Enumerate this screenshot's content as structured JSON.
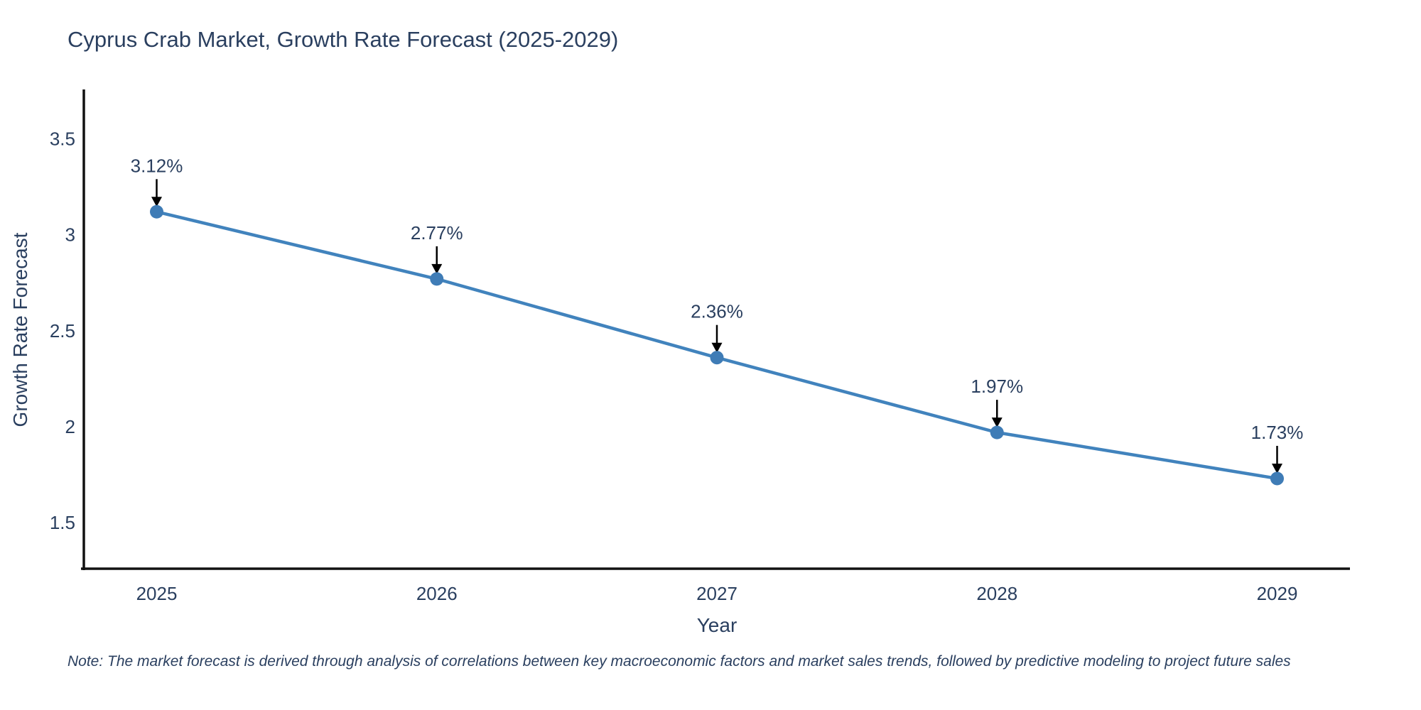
{
  "page": {
    "background_color": "#ffffff",
    "text_color": "#2a3f5f"
  },
  "chart_data": {
    "type": "line",
    "title": "Cyprus Crab Market, Growth Rate Forecast (2025-2029)",
    "xlabel": "Year",
    "ylabel": "Growth Rate Forecast",
    "x": [
      2025,
      2026,
      2027,
      2028,
      2029
    ],
    "y": [
      3.12,
      2.77,
      2.36,
      1.97,
      1.73
    ],
    "point_labels": [
      "3.12%",
      "2.77%",
      "2.36%",
      "1.97%",
      "1.73%"
    ],
    "x_tick_labels": [
      "2025",
      "2026",
      "2027",
      "2028",
      "2029"
    ],
    "y_tick_labels": [
      "3.5",
      "3",
      "2.5",
      "2",
      "1.5"
    ],
    "y_tick_values": [
      3.5,
      3.0,
      2.5,
      2.0,
      1.5
    ],
    "xlim": [
      2024.74,
      2029.26
    ],
    "ylim": [
      1.26,
      3.75
    ],
    "grid": false,
    "legend_position": "none",
    "line_color": "#4183bd",
    "marker_color": "#3f7cb6",
    "axis_line_color": "#111111",
    "annotation_arrow_color": "#000000",
    "label_color": "#2a3f5f"
  },
  "footnote": {
    "text": "Note: The market forecast is derived through analysis of correlations between key macroeconomic factors and market sales trends, followed by predictive modeling to project future sales"
  }
}
